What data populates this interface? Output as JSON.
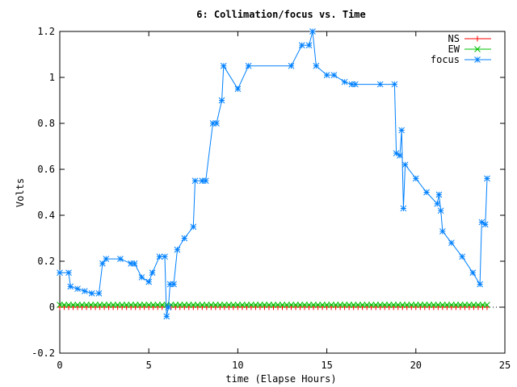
{
  "chart_data": {
    "type": "line",
    "title": "6: Collimation/focus vs. Time",
    "xlabel": "time (Elapse Hours)",
    "ylabel": "Volts",
    "xlim": [
      0,
      25
    ],
    "ylim": [
      -0.2,
      1.2
    ],
    "xticks": [
      0,
      5,
      10,
      15,
      20,
      25
    ],
    "yticks": [
      -0.2,
      0,
      0.2,
      0.4,
      0.6,
      0.8,
      1,
      1.2
    ],
    "ytick_labels": [
      "-0.2",
      "0",
      "0.2",
      "0.4",
      "0.6",
      "0.8",
      "1",
      "1.2"
    ],
    "grid": false,
    "legend_position": "top-right",
    "series": [
      {
        "name": "NS",
        "color": "#ff0000",
        "marker": "plus",
        "x": [
          0,
          4,
          8,
          12,
          16,
          20,
          24
        ],
        "y": [
          0,
          0,
          0,
          0,
          0,
          0,
          0
        ]
      },
      {
        "name": "EW",
        "color": "#00c000",
        "marker": "cross",
        "x": [
          0,
          4,
          8,
          12,
          16,
          20,
          24
        ],
        "y": [
          0.01,
          0.01,
          0.01,
          0.01,
          0.01,
          0.01,
          0.01
        ]
      },
      {
        "name": "focus",
        "color": "#0080ff",
        "marker": "star",
        "x": [
          0,
          0.5,
          0.6,
          1,
          1.4,
          1.8,
          2.2,
          2.4,
          2.6,
          3.4,
          4,
          4.2,
          4.6,
          5.0,
          5.2,
          5.6,
          5.9,
          6.0,
          6.1,
          6.2,
          6.4,
          6.6,
          7.0,
          7.5,
          7.6,
          8.0,
          8.2,
          8.6,
          8.8,
          9.1,
          9.2,
          10.0,
          10.6,
          13.0,
          13.6,
          14.0,
          14.2,
          14.4,
          15.0,
          15.4,
          16.0,
          16.4,
          16.6,
          18.0,
          18.8,
          18.9,
          19.1,
          19.2,
          19.3,
          19.4,
          20.0,
          20.6,
          21.2,
          21.3,
          21.4,
          21.5,
          22.0,
          22.6,
          23.2,
          23.6,
          23.7,
          23.9,
          24.0
        ],
        "y": [
          0.15,
          0.15,
          0.09,
          0.08,
          0.07,
          0.06,
          0.06,
          0.19,
          0.21,
          0.21,
          0.19,
          0.19,
          0.13,
          0.11,
          0.15,
          0.22,
          0.22,
          -0.04,
          0.0,
          0.1,
          0.1,
          0.25,
          0.3,
          0.35,
          0.55,
          0.55,
          0.55,
          0.8,
          0.8,
          0.9,
          1.05,
          0.95,
          1.05,
          1.05,
          1.14,
          1.14,
          1.2,
          1.05,
          1.01,
          1.01,
          0.98,
          0.97,
          0.97,
          0.97,
          0.97,
          0.67,
          0.66,
          0.77,
          0.43,
          0.62,
          0.56,
          0.5,
          0.45,
          0.49,
          0.42,
          0.33,
          0.28,
          0.22,
          0.15,
          0.1,
          0.37,
          0.36,
          0.56
        ]
      }
    ]
  }
}
